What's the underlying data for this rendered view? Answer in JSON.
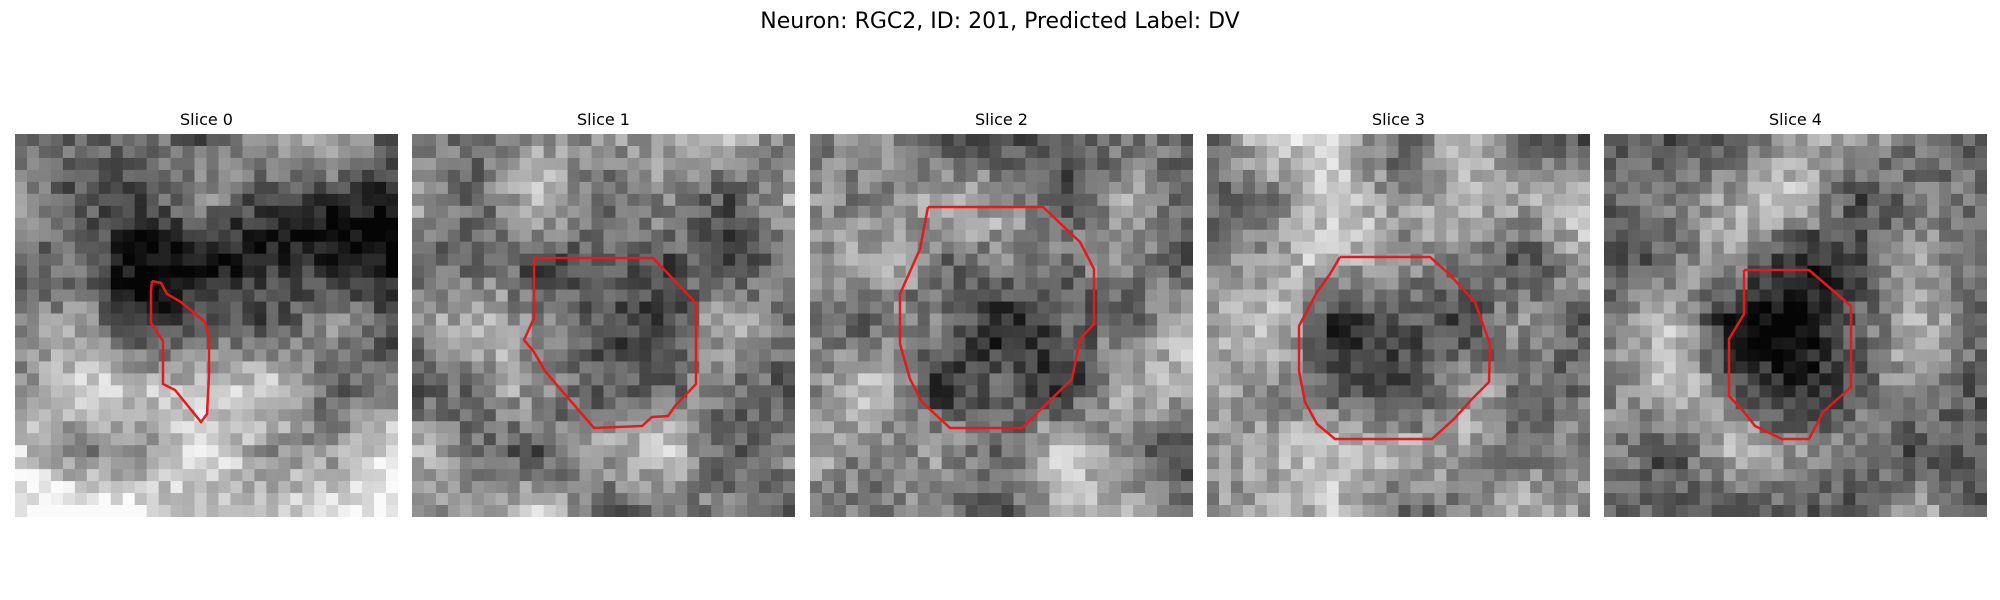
{
  "figure": {
    "title": "Neuron: RGC2, ID: 201, Predicted Label: DV"
  },
  "colors": {
    "contour": "#e41a1c",
    "background": "#ffffff"
  },
  "panels": [
    {
      "title": "Slice 0",
      "seed": 11,
      "darkBand": true
    },
    {
      "title": "Slice 1",
      "seed": 23,
      "darkBand": false
    },
    {
      "title": "Slice 2",
      "seed": 37,
      "darkBand": false
    },
    {
      "title": "Slice 3",
      "seed": 41,
      "darkBand": false
    },
    {
      "title": "Slice 4",
      "seed": 53,
      "darkBand": false
    }
  ]
}
